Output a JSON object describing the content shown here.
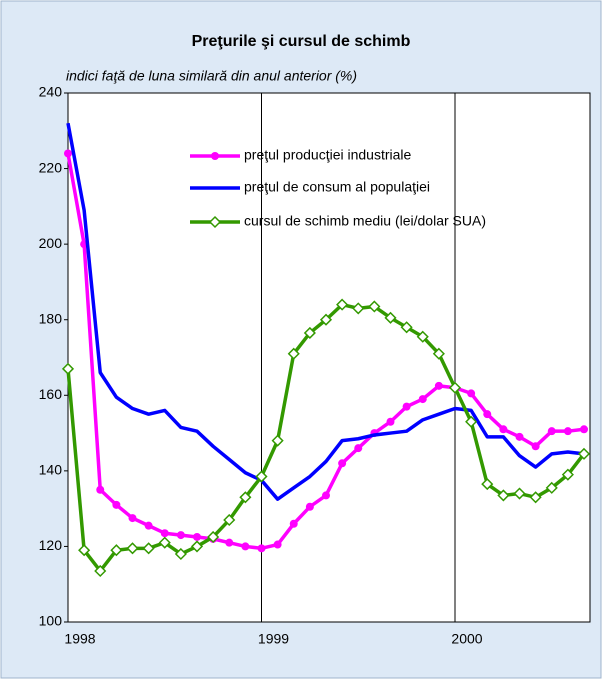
{
  "chart_data": {
    "type": "line",
    "title": "Preţurile şi cursul de schimb",
    "subtitle": "indici faţă de luna similară din anul anterior (%)",
    "categories": [
      "1998",
      null,
      null,
      null,
      null,
      null,
      null,
      null,
      null,
      null,
      null,
      null,
      "1999",
      null,
      null,
      null,
      null,
      null,
      null,
      null,
      null,
      null,
      null,
      null,
      "2000",
      null,
      null,
      null,
      null,
      null,
      null,
      null,
      null
    ],
    "series": [
      {
        "name": "preţul producţiei industriale",
        "color": "#ff00ff",
        "marker": "circle",
        "values": [
          224,
          200,
          135,
          131,
          127.5,
          125.5,
          123.5,
          123,
          122.5,
          122,
          121,
          120,
          119.5,
          120.5,
          126,
          130.5,
          133.5,
          142,
          146,
          150,
          153,
          157,
          159,
          162.5,
          162,
          160.5,
          155,
          151,
          149,
          146.5,
          150.5,
          150.5,
          151
        ]
      },
      {
        "name": "preţul de consum al populaţiei",
        "color": "#0000ff",
        "marker": "none",
        "values": [
          232,
          209,
          166,
          159.5,
          156.5,
          155,
          156,
          151.5,
          150.5,
          146.5,
          143,
          139.5,
          137.5,
          132.5,
          135.5,
          138.5,
          142.5,
          148,
          148.5,
          149.5,
          150,
          150.5,
          153.5,
          155,
          156.5,
          156,
          149,
          149,
          144,
          141,
          144.5,
          145,
          144.5
        ]
      },
      {
        "name": "cursul de schimb mediu (lei/dolar SUA)",
        "color": "#339900",
        "marker": "diamond",
        "values": [
          167,
          119,
          113.5,
          119,
          119.5,
          119.5,
          121,
          118,
          120,
          122.5,
          127,
          133,
          138.5,
          148,
          171,
          176.5,
          180,
          184,
          183,
          183.5,
          180.5,
          178,
          175.5,
          171,
          162,
          153,
          136.5,
          133.5,
          134,
          133,
          135.5,
          139,
          144.5
        ]
      }
    ],
    "ylim": [
      100,
      240
    ],
    "yticks": [
      100,
      120,
      140,
      160,
      180,
      200,
      220,
      240
    ],
    "grid": true
  }
}
